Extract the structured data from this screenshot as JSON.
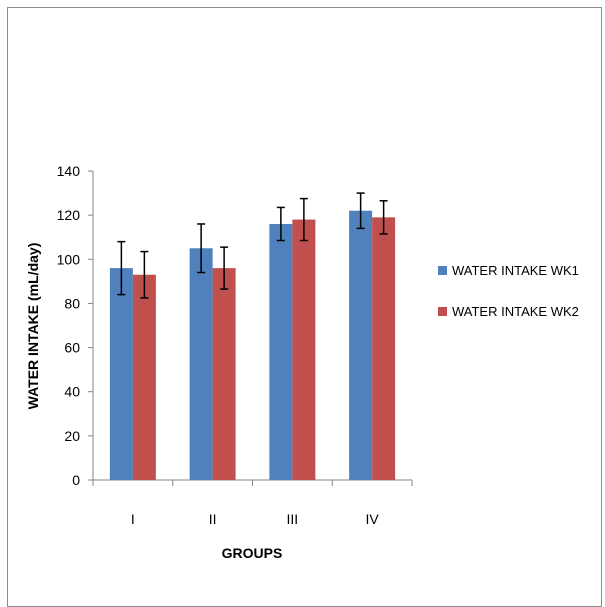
{
  "chart_data": {
    "type": "bar",
    "categories": [
      "I",
      "II",
      "III",
      "IV"
    ],
    "series": [
      {
        "name": "WATER INTAKE WK1",
        "values": [
          96,
          105,
          116,
          122
        ],
        "errors": [
          12,
          11,
          7.5,
          8
        ],
        "color": "#4F81BD"
      },
      {
        "name": "WATER INTAKE WK2",
        "values": [
          93,
          96,
          118,
          119
        ],
        "errors": [
          10.5,
          9.5,
          9.5,
          7.5
        ],
        "color": "#C0504D"
      }
    ],
    "xlabel": "GROUPS",
    "ylabel": "WATER INTAKE  (mL/day)",
    "ylim": [
      0,
      140
    ],
    "yticks": [
      "0",
      "20",
      "40",
      "60",
      "80",
      "100",
      "120",
      "140"
    ],
    "grid": false,
    "legend_position": "right"
  }
}
